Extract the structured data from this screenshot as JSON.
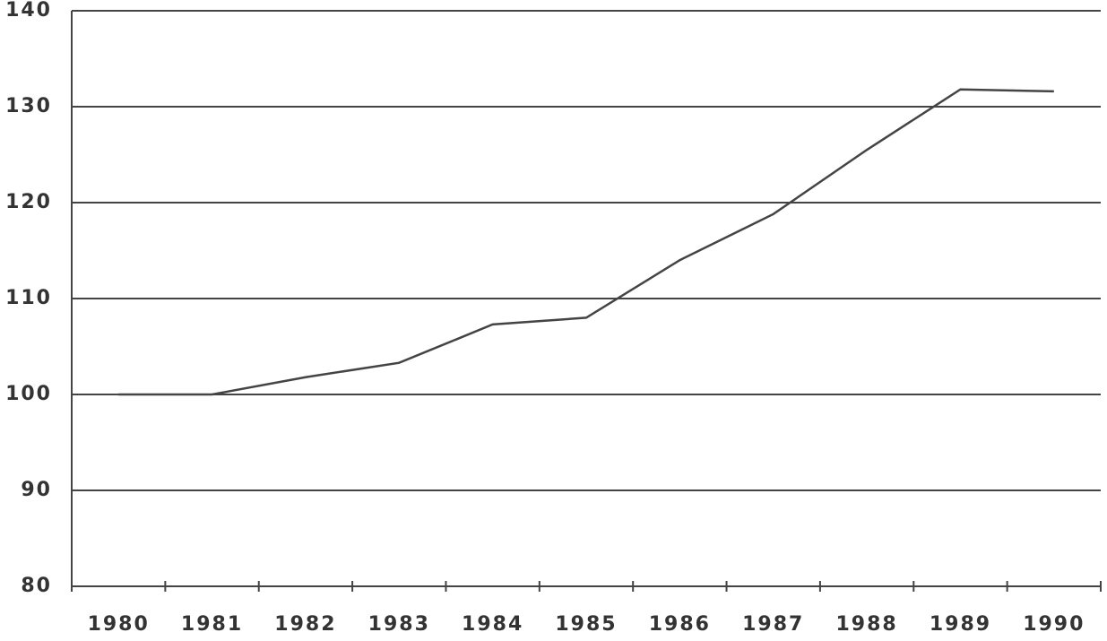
{
  "chart_data": {
    "type": "line",
    "categories": [
      "1980",
      "1981",
      "1982",
      "1983",
      "1984",
      "1985",
      "1986",
      "1987",
      "1988",
      "1989",
      "1990"
    ],
    "values": [
      100,
      100,
      101.8,
      103.3,
      107.3,
      108,
      114,
      118.8,
      125.5,
      131.8,
      131.6
    ],
    "color": "#444444",
    "ylim": [
      80,
      140
    ],
    "yticks": [
      80,
      90,
      100,
      110,
      120,
      130,
      140
    ],
    "grid": true
  }
}
